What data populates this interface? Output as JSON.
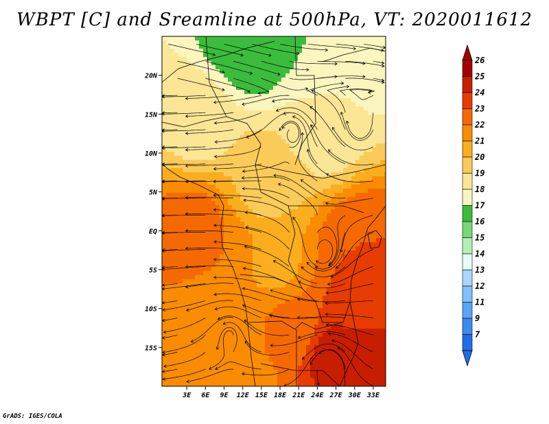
{
  "title": "WBPT [C] and Sreamline at 500hPa, VT: 2020011612",
  "credit": "GrADS: IGES/COLA",
  "map": {
    "lon_range": [
      -1,
      35
    ],
    "lat_range": [
      -20,
      25
    ],
    "lon_ticks": [
      {
        "value": 3,
        "label": "3E"
      },
      {
        "value": 6,
        "label": "6E"
      },
      {
        "value": 9,
        "label": "9E"
      },
      {
        "value": 12,
        "label": "12E"
      },
      {
        "value": 15,
        "label": "15E"
      },
      {
        "value": 18,
        "label": "18E"
      },
      {
        "value": 21,
        "label": "21E"
      },
      {
        "value": 24,
        "label": "24E"
      },
      {
        "value": 27,
        "label": "27E"
      },
      {
        "value": 30,
        "label": "30E"
      },
      {
        "value": 33,
        "label": "33E"
      }
    ],
    "lat_ticks": [
      {
        "value": 20,
        "label": "20N"
      },
      {
        "value": 15,
        "label": "15N"
      },
      {
        "value": 10,
        "label": "10N"
      },
      {
        "value": 5,
        "label": "5N"
      },
      {
        "value": 0,
        "label": "EQ"
      },
      {
        "value": -5,
        "label": "5S"
      },
      {
        "value": -10,
        "label": "10S"
      },
      {
        "value": -15,
        "label": "15S"
      }
    ]
  },
  "colorbar": {
    "levels": [
      "26",
      "25",
      "24",
      "23",
      "22",
      "21",
      "20",
      "19",
      "18",
      "17",
      "16",
      "15",
      "14",
      "13",
      "12",
      "11",
      "9",
      "7"
    ],
    "colors": [
      "#a50000",
      "#c81e00",
      "#e63c00",
      "#f56a00",
      "#f98c00",
      "#faae1e",
      "#fbcb5a",
      "#fbe696",
      "#fbf5be",
      "#3cbc3c",
      "#78d778",
      "#b4f0b4",
      "#e6fff5",
      "#aad6ff",
      "#82bfff",
      "#5aa5f5",
      "#3c8ceb",
      "#1f6ee6"
    ],
    "top_arrow_color": "#a50000",
    "bottom_arrow_color": "#1f6ee6"
  },
  "field_centers": [
    {
      "lon": 13,
      "lat": 24,
      "value": 16
    },
    {
      "lon": 24,
      "lat": 23,
      "value": 17
    },
    {
      "lon": 33,
      "lat": 24,
      "value": 17
    },
    {
      "lon": 5,
      "lat": 14,
      "value": 18.6
    },
    {
      "lon": 25,
      "lat": 13,
      "value": 18.4
    },
    {
      "lon": 16,
      "lat": 6,
      "value": 19.6
    },
    {
      "lon": 4,
      "lat": 0,
      "value": 22.5
    },
    {
      "lon": 8,
      "lat": -4,
      "value": 22
    },
    {
      "lon": 17,
      "lat": -4,
      "value": 20.8
    },
    {
      "lon": 31,
      "lat": -2,
      "value": 23
    },
    {
      "lon": 32,
      "lat": -9,
      "value": 23.5
    },
    {
      "lon": 9,
      "lat": -12,
      "value": 21
    },
    {
      "lon": 20,
      "lat": -13,
      "value": 22.3
    },
    {
      "lon": 26,
      "lat": -16,
      "value": 24.3
    },
    {
      "lon": 32,
      "lat": -17,
      "value": 24.8
    },
    {
      "lon": 13,
      "lat": -19,
      "value": 21.8
    }
  ]
}
